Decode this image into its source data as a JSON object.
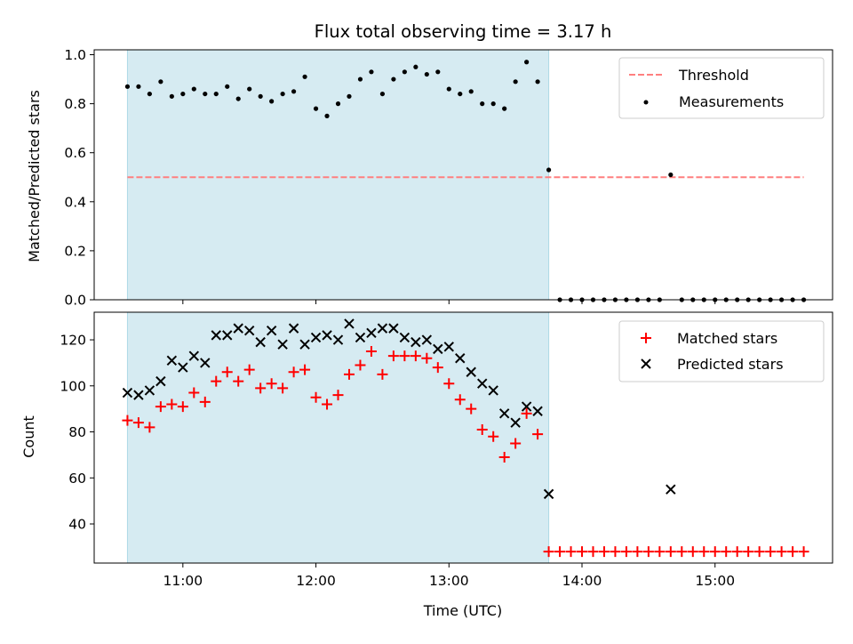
{
  "chart_data": [
    {
      "type": "scatter",
      "title": "Flux total observing time = 3.17 h",
      "ylabel": "Matched/Predicted stars",
      "xlim": [
        "10:20",
        "15:53"
      ],
      "ylim": [
        0,
        1.02
      ],
      "yticks": [
        "0.0",
        "0.2",
        "0.4",
        "0.6",
        "0.8",
        "1.0"
      ],
      "shaded_interval": [
        "10:35",
        "13:45"
      ],
      "colors": {
        "shade": "#add8e6",
        "threshold": "#ff7f7f",
        "measurements": "#000000"
      },
      "legend_position": "top-right",
      "grid": false,
      "series": [
        {
          "name": "Threshold",
          "style": "dashed-line",
          "x": [
            "10:35",
            "15:40"
          ],
          "y": [
            0.5,
            0.5
          ]
        },
        {
          "name": "Measurements",
          "style": "dots",
          "x": [
            "10:35",
            "10:40",
            "10:45",
            "10:50",
            "10:55",
            "11:00",
            "11:05",
            "11:10",
            "11:15",
            "11:20",
            "11:25",
            "11:30",
            "11:35",
            "11:40",
            "11:45",
            "11:50",
            "11:55",
            "12:00",
            "12:05",
            "12:10",
            "12:15",
            "12:20",
            "12:25",
            "12:30",
            "12:35",
            "12:40",
            "12:45",
            "12:50",
            "12:55",
            "13:00",
            "13:05",
            "13:10",
            "13:15",
            "13:20",
            "13:25",
            "13:30",
            "13:35",
            "13:40",
            "13:45",
            "13:50",
            "13:55",
            "14:00",
            "14:05",
            "14:10",
            "14:15",
            "14:20",
            "14:25",
            "14:30",
            "14:35",
            "14:40",
            "14:45",
            "14:50",
            "14:55",
            "15:00",
            "15:05",
            "15:10",
            "15:15",
            "15:20",
            "15:25",
            "15:30",
            "15:35",
            "15:40"
          ],
          "y": [
            0.87,
            0.87,
            0.84,
            0.89,
            0.83,
            0.84,
            0.86,
            0.84,
            0.84,
            0.87,
            0.82,
            0.86,
            0.83,
            0.81,
            0.84,
            0.85,
            0.91,
            0.78,
            0.75,
            0.8,
            0.83,
            0.9,
            0.93,
            0.84,
            0.9,
            0.93,
            0.95,
            0.92,
            0.93,
            0.86,
            0.84,
            0.85,
            0.8,
            0.8,
            0.78,
            0.89,
            0.97,
            0.89,
            0.53,
            0,
            0,
            0,
            0,
            0,
            0,
            0,
            0,
            0,
            0,
            0.51,
            0,
            0,
            0,
            0,
            0,
            0,
            0,
            0,
            0,
            0,
            0,
            0
          ]
        }
      ]
    },
    {
      "type": "scatter",
      "title": "",
      "xlabel": "Time (UTC)",
      "ylabel": "Count",
      "xticks": [
        "11:00",
        "12:00",
        "13:00",
        "14:00",
        "15:00"
      ],
      "xlim": [
        "10:20",
        "15:53"
      ],
      "ylim": [
        23,
        132
      ],
      "yticks": [
        "40",
        "60",
        "80",
        "100",
        "120"
      ],
      "shaded_interval": [
        "10:35",
        "13:45"
      ],
      "colors": {
        "shade": "#add8e6",
        "matched": "#ff0000",
        "predicted": "#000000"
      },
      "legend_position": "top-right",
      "grid": false,
      "series": [
        {
          "name": "Matched stars",
          "marker": "plus",
          "x": [
            "10:35",
            "10:40",
            "10:45",
            "10:50",
            "10:55",
            "11:00",
            "11:05",
            "11:10",
            "11:15",
            "11:20",
            "11:25",
            "11:30",
            "11:35",
            "11:40",
            "11:45",
            "11:50",
            "11:55",
            "12:00",
            "12:05",
            "12:10",
            "12:15",
            "12:20",
            "12:25",
            "12:30",
            "12:35",
            "12:40",
            "12:45",
            "12:50",
            "12:55",
            "13:00",
            "13:05",
            "13:10",
            "13:15",
            "13:20",
            "13:25",
            "13:30",
            "13:35",
            "13:40",
            "13:45",
            "13:50",
            "13:55",
            "14:00",
            "14:05",
            "14:10",
            "14:15",
            "14:20",
            "14:25",
            "14:30",
            "14:35",
            "14:40",
            "14:45",
            "14:50",
            "14:55",
            "15:00",
            "15:05",
            "15:10",
            "15:15",
            "15:20",
            "15:25",
            "15:30",
            "15:35",
            "15:40"
          ],
          "y": [
            85,
            84,
            82,
            91,
            92,
            91,
            97,
            93,
            102,
            106,
            102,
            107,
            99,
            101,
            99,
            106,
            107,
            95,
            92,
            96,
            105,
            109,
            115,
            105,
            113,
            113,
            113,
            112,
            108,
            101,
            94,
            90,
            81,
            78,
            69,
            75,
            88,
            79,
            28,
            28,
            28,
            28,
            28,
            28,
            28,
            28,
            28,
            28,
            28,
            28,
            28,
            28,
            28,
            28,
            28,
            28,
            28,
            28,
            28,
            28,
            28,
            28
          ]
        },
        {
          "name": "Predicted stars",
          "marker": "x",
          "x": [
            "10:35",
            "10:40",
            "10:45",
            "10:50",
            "10:55",
            "11:00",
            "11:05",
            "11:10",
            "11:15",
            "11:20",
            "11:25",
            "11:30",
            "11:35",
            "11:40",
            "11:45",
            "11:50",
            "11:55",
            "12:00",
            "12:05",
            "12:10",
            "12:15",
            "12:20",
            "12:25",
            "12:30",
            "12:35",
            "12:40",
            "12:45",
            "12:50",
            "12:55",
            "13:00",
            "13:05",
            "13:10",
            "13:15",
            "13:20",
            "13:25",
            "13:30",
            "13:35",
            "13:40",
            "13:45",
            "14:40"
          ],
          "y": [
            97,
            96,
            98,
            102,
            111,
            108,
            113,
            110,
            122,
            122,
            125,
            124,
            119,
            124,
            118,
            125,
            118,
            121,
            122,
            120,
            127,
            121,
            123,
            125,
            125,
            121,
            119,
            120,
            116,
            117,
            112,
            106,
            101,
            98,
            88,
            84,
            91,
            89,
            53,
            55
          ]
        }
      ]
    }
  ]
}
